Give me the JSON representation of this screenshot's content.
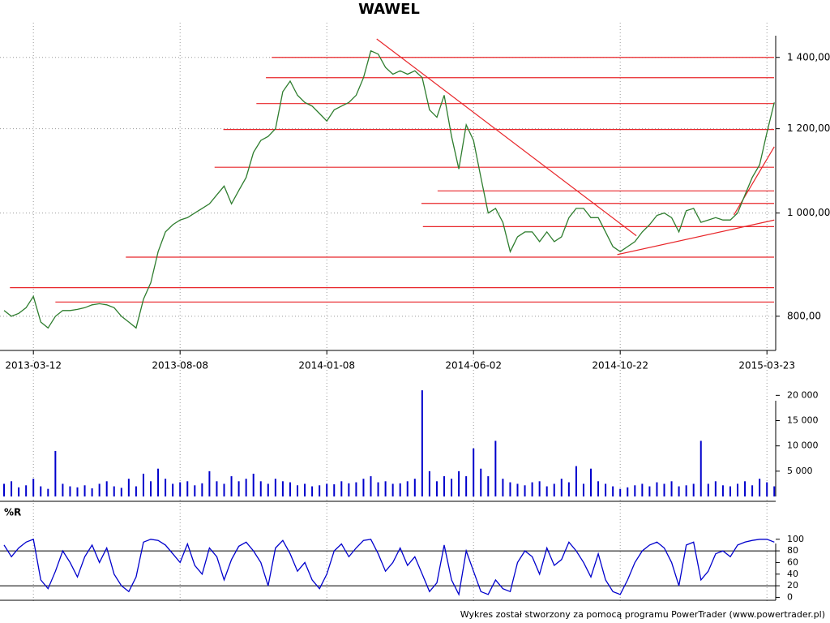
{
  "chart_data": [
    {
      "type": "line",
      "title": "WAWEL",
      "log_scale": true,
      "grid": true,
      "color": "#2e7d2e",
      "level_color": "#e8262a",
      "categories": [
        null,
        null,
        null,
        null,
        "2013-03-12",
        null,
        null,
        null,
        null,
        null,
        null,
        null,
        null,
        null,
        null,
        null,
        null,
        null,
        null,
        null,
        null,
        null,
        null,
        null,
        "2013-08-08",
        null,
        null,
        null,
        null,
        null,
        null,
        null,
        null,
        null,
        null,
        null,
        null,
        null,
        null,
        null,
        null,
        null,
        null,
        null,
        "2014-01-08",
        null,
        null,
        null,
        null,
        null,
        null,
        null,
        null,
        null,
        null,
        null,
        null,
        null,
        null,
        null,
        null,
        null,
        null,
        null,
        "2014-06-02",
        null,
        null,
        null,
        null,
        null,
        null,
        null,
        null,
        null,
        null,
        null,
        null,
        null,
        null,
        null,
        null,
        null,
        null,
        null,
        "2014-10-22",
        null,
        null,
        null,
        null,
        null,
        null,
        null,
        null,
        null,
        null,
        null,
        null,
        null,
        null,
        null,
        null,
        null,
        null,
        null,
        "2015-03-23",
        null
      ],
      "values": [
        810,
        800,
        805,
        815,
        835,
        790,
        780,
        800,
        810,
        810,
        812,
        815,
        820,
        822,
        820,
        815,
        800,
        790,
        780,
        830,
        860,
        920,
        960,
        975,
        985,
        990,
        1000,
        1010,
        1020,
        1040,
        1060,
        1020,
        1050,
        1080,
        1140,
        1170,
        1180,
        1200,
        1300,
        1330,
        1290,
        1270,
        1260,
        1240,
        1220,
        1250,
        1260,
        1270,
        1290,
        1340,
        1420,
        1410,
        1370,
        1350,
        1360,
        1350,
        1360,
        1340,
        1250,
        1230,
        1290,
        1180,
        1100,
        1210,
        1170,
        1080,
        1000,
        1010,
        980,
        920,
        950,
        960,
        960,
        940,
        960,
        940,
        950,
        990,
        1010,
        1010,
        990,
        990,
        960,
        930,
        920,
        930,
        940,
        960,
        975,
        995,
        1000,
        990,
        960,
        1005,
        1010,
        980,
        985,
        990,
        985,
        985,
        1000,
        1040,
        1080,
        1110,
        1190,
        1270
      ],
      "ylim": [
        743,
        1509
      ],
      "yticks": [
        {
          "value": 800,
          "label": "800,00"
        },
        {
          "value": 1000,
          "label": "1 000,00"
        },
        {
          "value": 1200,
          "label": "1 200,00"
        },
        {
          "value": 1400,
          "label": "1 400,00"
        }
      ],
      "levels": [
        {
          "value": 1400,
          "from": 36.5
        },
        {
          "value": 1340,
          "from": 35.7
        },
        {
          "value": 1267,
          "from": 34.4
        },
        {
          "value": 1198,
          "from": 29.9
        },
        {
          "value": 1104,
          "from": 28.7
        },
        {
          "value": 1049,
          "from": 59.1
        },
        {
          "value": 1021,
          "from": 56.9
        },
        {
          "value": 971,
          "from": 57.1
        },
        {
          "value": 909,
          "from": 16.6
        },
        {
          "value": 851,
          "from": 0.8
        },
        {
          "value": 825,
          "from": 7
        }
      ],
      "trendlines": [
        {
          "x": [
            50.8,
            86.2
          ],
          "values": [
            1457,
            952
          ]
        },
        {
          "x": [
            83.6,
            105
          ],
          "values": [
            914,
            985
          ]
        },
        {
          "x": [
            99.5,
            105
          ],
          "values": [
            996,
            1154
          ]
        }
      ]
    },
    {
      "type": "bar",
      "color": "#0000cc",
      "values": [
        2500,
        3000,
        1800,
        2200,
        3500,
        2000,
        1500,
        9000,
        2500,
        2000,
        1800,
        2200,
        1600,
        2500,
        3000,
        2000,
        1700,
        3500,
        2000,
        4500,
        3000,
        5500,
        3500,
        2500,
        2800,
        3000,
        2200,
        2600,
        5000,
        3000,
        2500,
        4000,
        3000,
        3500,
        4500,
        3000,
        2500,
        3500,
        3000,
        2800,
        2200,
        2500,
        2000,
        2200,
        2500,
        2400,
        3000,
        2600,
        2800,
        3500,
        4000,
        2800,
        3000,
        2500,
        2600,
        3000,
        3500,
        21000,
        5000,
        3000,
        4000,
        3500,
        5000,
        4000,
        9500,
        5500,
        4000,
        11000,
        3500,
        2800,
        2500,
        2200,
        2800,
        3000,
        2000,
        2500,
        3500,
        2800,
        6000,
        2500,
        5500,
        3000,
        2500,
        2000,
        1500,
        1800,
        2200,
        2500,
        2000,
        2800,
        2500,
        3000,
        2000,
        2200,
        2500,
        11000,
        2500,
        3000,
        2200,
        2000,
        2500,
        3000,
        2200,
        3500,
        2800,
        2000
      ],
      "ylim": [
        0,
        21500
      ],
      "yticks": [
        {
          "value": 5000,
          "label": "5 000"
        },
        {
          "value": 10000,
          "label": "10 000"
        },
        {
          "value": 15000,
          "label": "15 000"
        },
        {
          "value": 20000,
          "label": "20 000"
        }
      ]
    },
    {
      "type": "line",
      "title": "%R",
      "color": "#0000cc",
      "values": [
        90,
        70,
        85,
        95,
        100,
        30,
        15,
        45,
        80,
        60,
        35,
        70,
        90,
        60,
        85,
        40,
        20,
        10,
        35,
        95,
        100,
        98,
        90,
        75,
        60,
        92,
        55,
        40,
        85,
        70,
        30,
        65,
        88,
        95,
        80,
        60,
        20,
        85,
        98,
        75,
        45,
        60,
        30,
        15,
        40,
        80,
        92,
        70,
        85,
        98,
        100,
        75,
        45,
        60,
        85,
        55,
        70,
        40,
        10,
        25,
        90,
        30,
        5,
        80,
        45,
        10,
        5,
        30,
        15,
        10,
        60,
        80,
        70,
        40,
        85,
        55,
        65,
        95,
        80,
        60,
        35,
        75,
        30,
        10,
        5,
        30,
        60,
        80,
        90,
        95,
        85,
        60,
        20,
        90,
        95,
        30,
        45,
        75,
        80,
        70,
        90,
        95,
        98,
        100,
        100,
        95
      ],
      "ylim": [
        -5,
        115
      ],
      "yticks": [
        0,
        20,
        40,
        60,
        80,
        100
      ],
      "reference_lines": [
        20,
        80
      ]
    }
  ],
  "footer": "Wykres został stworzony za pomocą programu PowerTrader (www.powertrader.pl)"
}
